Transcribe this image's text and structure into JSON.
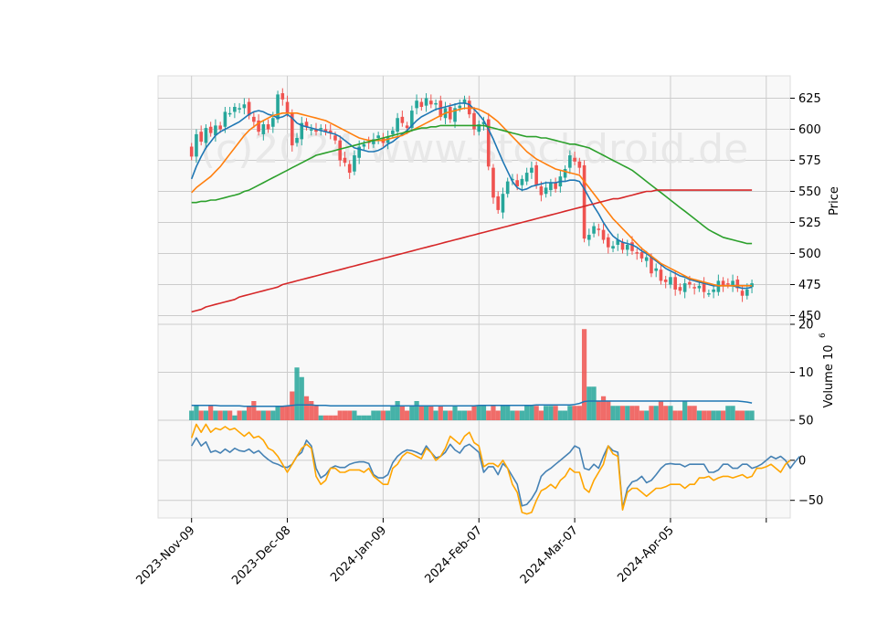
{
  "chart_data": [
    {
      "type": "candlestick",
      "panel": "price",
      "ylabel": "Price",
      "ylim": [
        443,
        643
      ],
      "yticks": [
        450,
        475,
        500,
        525,
        550,
        575,
        600,
        625
      ],
      "watermark": "(c)2024 www.stockdroid.de",
      "x_tick_labels": [
        "2023-Nov-09",
        "2023-Dec-08",
        "2024-Jan-09",
        "2024-Feb-07",
        "2024-Mar-07",
        "2024-Apr-05"
      ],
      "x_tick_index": [
        0,
        20,
        40,
        60,
        80,
        100
      ],
      "x_range": [
        -7,
        125
      ],
      "grid": true,
      "up_color": "#26a69a",
      "down_color": "#ef5350",
      "candles_close_approx": [
        578,
        596,
        590,
        601,
        597,
        603,
        600,
        614,
        613,
        618,
        617,
        620,
        611,
        606,
        598,
        604,
        600,
        609,
        628,
        624,
        613,
        587,
        593,
        605,
        602,
        600,
        598,
        601,
        598,
        597,
        591,
        575,
        573,
        565,
        579,
        586,
        588,
        589,
        592,
        595,
        589,
        594,
        599,
        609,
        605,
        601,
        615,
        623,
        618,
        625,
        620,
        621,
        610,
        617,
        608,
        617,
        619,
        624,
        612,
        600,
        604,
        606,
        570,
        545,
        535,
        548,
        558,
        560,
        554,
        560,
        565,
        569,
        555,
        547,
        553,
        557,
        552,
        562,
        568,
        579,
        574,
        569,
        512,
        515,
        522,
        519,
        511,
        505,
        506,
        511,
        503,
        507,
        502,
        500,
        496,
        497,
        484,
        488,
        478,
        477,
        481,
        471,
        470,
        476,
        475,
        472,
        474,
        469,
        468,
        471,
        478,
        474,
        475,
        478,
        472,
        466,
        471,
        476
      ],
      "ma_series": [
        {
          "color": "#1f77b4",
          "values": [
            560,
            570,
            578,
            585,
            590,
            595,
            598,
            600,
            602,
            604,
            606,
            609,
            612,
            614,
            615,
            614,
            612,
            611,
            609,
            610,
            612,
            609,
            605,
            603,
            602,
            601,
            600,
            599,
            598,
            597,
            596,
            594,
            591,
            588,
            585,
            584,
            583,
            582,
            582,
            583,
            585,
            588,
            590,
            593,
            596,
            599,
            603,
            607,
            610,
            612,
            614,
            616,
            617,
            618,
            619,
            620,
            621,
            621,
            620,
            616,
            612,
            607,
            600,
            592,
            583,
            574,
            566,
            558,
            553,
            551,
            552,
            554,
            555,
            556,
            557,
            557,
            557,
            558,
            558,
            559,
            559,
            558,
            552,
            545,
            538,
            532,
            525,
            519,
            514,
            511,
            509,
            508,
            507,
            505,
            502,
            500,
            497,
            494,
            491,
            488,
            486,
            484,
            482,
            481,
            479,
            478,
            477,
            476,
            475,
            474,
            474,
            474,
            474,
            474,
            473,
            472,
            472,
            473
          ]
        },
        {
          "color": "#ff7f0e",
          "values": [
            549,
            553,
            556,
            559,
            562,
            566,
            570,
            575,
            580,
            585,
            590,
            595,
            599,
            602,
            605,
            607,
            609,
            611,
            612,
            613,
            613,
            613,
            613,
            612,
            611,
            610,
            609,
            608,
            607,
            605,
            603,
            601,
            599,
            597,
            595,
            593,
            592,
            591,
            591,
            591,
            591,
            592,
            593,
            594,
            595,
            597,
            599,
            601,
            603,
            605,
            607,
            609,
            611,
            613,
            614,
            615,
            616,
            617,
            617,
            617,
            616,
            614,
            612,
            609,
            606,
            602,
            598,
            594,
            590,
            586,
            582,
            579,
            576,
            574,
            572,
            570,
            568,
            567,
            566,
            565,
            564,
            563,
            558,
            553,
            548,
            543,
            538,
            533,
            528,
            524,
            520,
            516,
            512,
            508,
            504,
            501,
            498,
            495,
            492,
            490,
            488,
            486,
            484,
            482,
            480,
            479,
            478,
            477,
            476,
            475,
            474,
            474,
            474,
            474,
            474,
            474,
            474,
            474
          ]
        },
        {
          "color": "#2ca02c",
          "values": [
            541,
            541,
            542,
            542,
            543,
            543,
            544,
            545,
            546,
            547,
            548,
            550,
            551,
            553,
            555,
            557,
            559,
            561,
            563,
            565,
            567,
            569,
            571,
            573,
            575,
            577,
            579,
            580,
            581,
            582,
            583,
            584,
            585,
            586,
            587,
            588,
            589,
            590,
            591,
            592,
            593,
            594,
            595,
            596,
            597,
            598,
            599,
            600,
            601,
            601,
            602,
            602,
            603,
            603,
            603,
            603,
            603,
            603,
            603,
            603,
            603,
            603,
            602,
            601,
            600,
            599,
            598,
            597,
            596,
            595,
            594,
            594,
            594,
            593,
            593,
            592,
            591,
            590,
            589,
            588,
            588,
            587,
            586,
            585,
            583,
            581,
            579,
            577,
            575,
            573,
            571,
            569,
            567,
            564,
            561,
            558,
            555,
            552,
            549,
            546,
            543,
            540,
            537,
            534,
            531,
            528,
            525,
            522,
            519,
            517,
            515,
            513,
            512,
            511,
            510,
            509,
            508,
            508
          ]
        },
        {
          "color": "#d62728",
          "values": [
            453,
            454,
            455,
            457,
            458,
            459,
            460,
            461,
            462,
            463,
            465,
            466,
            467,
            468,
            469,
            470,
            471,
            472,
            473,
            475,
            476,
            477,
            478,
            479,
            480,
            481,
            482,
            483,
            484,
            485,
            486,
            487,
            488,
            489,
            490,
            491,
            492,
            493,
            494,
            495,
            496,
            497,
            498,
            499,
            500,
            501,
            502,
            503,
            504,
            505,
            506,
            507,
            508,
            509,
            510,
            511,
            512,
            513,
            514,
            515,
            516,
            517,
            518,
            519,
            520,
            521,
            522,
            523,
            524,
            525,
            526,
            527,
            528,
            529,
            530,
            531,
            532,
            533,
            534,
            535,
            536,
            537,
            538,
            539,
            540,
            541,
            542,
            543,
            544,
            544,
            545,
            546,
            547,
            548,
            549,
            550,
            550,
            551,
            551,
            551,
            551,
            551,
            551,
            551,
            551,
            551,
            551,
            551,
            551,
            551,
            551,
            551,
            551,
            551,
            551,
            551,
            551,
            551
          ]
        }
      ]
    },
    {
      "type": "bar",
      "panel": "volume",
      "ylabel": "Volume  10^6",
      "ylim": [
        0,
        20
      ],
      "yticks": [
        10,
        20
      ],
      "grid": true,
      "values_approx": [
        2,
        3,
        2,
        2,
        3,
        2,
        2,
        2,
        2,
        1,
        2,
        2,
        3,
        4,
        2,
        2,
        2,
        2,
        3,
        3,
        3,
        6,
        11,
        9,
        5,
        4,
        3,
        1,
        1,
        1,
        1,
        2,
        2,
        2,
        2,
        1,
        1,
        1,
        2,
        2,
        2,
        2,
        3,
        4,
        3,
        2,
        3,
        4,
        3,
        3,
        3,
        2,
        3,
        2,
        2,
        3,
        2,
        2,
        2,
        3,
        3,
        3,
        2,
        3,
        2,
        3,
        3,
        2,
        2,
        2,
        3,
        3,
        3,
        2,
        3,
        3,
        3,
        2,
        2,
        3,
        3,
        3,
        19,
        7,
        7,
        4,
        5,
        4,
        3,
        3,
        3,
        3,
        3,
        3,
        2,
        2,
        3,
        3,
        4,
        3,
        3,
        2,
        2,
        4,
        3,
        3,
        2,
        2,
        2,
        2,
        2,
        2,
        3,
        3,
        2,
        2,
        2,
        2
      ],
      "ma_values_approx": [
        3.1,
        3.1,
        3.1,
        3.1,
        3.1,
        3.1,
        3.0,
        3.0,
        3.0,
        3.0,
        3.0,
        2.9,
        2.9,
        2.9,
        2.9,
        2.9,
        2.9,
        2.9,
        2.9,
        2.9,
        3.0,
        3.1,
        3.2,
        3.2,
        3.2,
        3.2,
        3.1,
        3.1,
        3.1,
        3.0,
        3.0,
        3.0,
        3.0,
        3.0,
        3.0,
        3.0,
        3.0,
        3.0,
        3.0,
        3.0,
        3.0,
        3.0,
        3.0,
        3.0,
        3.0,
        3.0,
        3.0,
        3.0,
        3.0,
        3.0,
        3.0,
        3.0,
        3.0,
        3.0,
        3.0,
        3.0,
        3.0,
        3.0,
        3.0,
        3.0,
        3.1,
        3.1,
        3.1,
        3.1,
        3.1,
        3.1,
        3.1,
        3.1,
        3.1,
        3.1,
        3.1,
        3.1,
        3.2,
        3.2,
        3.2,
        3.2,
        3.2,
        3.2,
        3.2,
        3.2,
        3.3,
        3.5,
        3.9,
        4.0,
        4.0,
        4.0,
        4.0,
        4.0,
        4.0,
        4.0,
        4.0,
        4.0,
        4.0,
        4.0,
        4.0,
        4.0,
        4.0,
        4.0,
        4.0,
        4.0,
        4.0,
        4.0,
        4.0,
        4.0,
        4.0,
        4.0,
        4.0,
        4.0,
        4.0,
        4.0,
        4.0,
        4.0,
        4.0,
        4.0,
        4.0,
        3.9,
        3.8,
        3.6
      ],
      "up_color": "#26a69a",
      "down_color": "#ef5350",
      "ma_color": "#1f77b4"
    },
    {
      "type": "line",
      "panel": "oscillator",
      "ylim": [
        -72,
        50
      ],
      "yticks": [
        -50,
        0,
        50
      ],
      "grid": true,
      "series": [
        {
          "color": "#4682b4",
          "values": [
            18,
            28,
            18,
            23,
            10,
            12,
            9,
            14,
            10,
            15,
            12,
            11,
            14,
            9,
            12,
            6,
            1,
            -3,
            -5,
            -8,
            -9,
            -5,
            5,
            10,
            25,
            18,
            -10,
            -22,
            -18,
            -10,
            -7,
            -9,
            -9,
            -5,
            -3,
            -2,
            -2,
            -4,
            -18,
            -22,
            -22,
            -18,
            -3,
            5,
            10,
            13,
            12,
            10,
            7,
            18,
            10,
            3,
            5,
            10,
            20,
            13,
            9,
            17,
            20,
            15,
            10,
            -15,
            -8,
            -8,
            -18,
            -4,
            -10,
            -20,
            -30,
            -57,
            -55,
            -48,
            -38,
            -20,
            -14,
            -10,
            -5,
            0,
            5,
            10,
            18,
            15,
            -10,
            -12,
            -5,
            -10,
            5,
            18,
            12,
            10,
            -60,
            -35,
            -27,
            -25,
            -20,
            -28,
            -25,
            -18,
            -10,
            -5,
            -4,
            -5,
            -5,
            -8,
            -5,
            -5,
            -5,
            -5,
            -15,
            -15,
            -12,
            -5,
            -5,
            -10,
            -10,
            -5,
            -5,
            -10,
            -8,
            -5,
            0,
            5,
            2,
            5,
            0,
            -10,
            -2,
            5
          ]
        },
        {
          "color": "#ffa500",
          "values": [
            28,
            45,
            35,
            45,
            35,
            40,
            38,
            42,
            38,
            40,
            35,
            30,
            35,
            28,
            30,
            25,
            15,
            12,
            5,
            -5,
            -15,
            -5,
            5,
            15,
            20,
            15,
            -20,
            -30,
            -25,
            -10,
            -10,
            -15,
            -15,
            -12,
            -12,
            -12,
            -15,
            -10,
            -20,
            -25,
            -30,
            -30,
            -10,
            -5,
            5,
            10,
            8,
            5,
            2,
            15,
            10,
            0,
            5,
            15,
            30,
            25,
            20,
            30,
            35,
            22,
            18,
            -8,
            -4,
            -4,
            -8,
            0,
            -10,
            -30,
            -40,
            -65,
            -67,
            -65,
            -50,
            -38,
            -35,
            -30,
            -35,
            -25,
            -20,
            -10,
            -15,
            -15,
            -35,
            -40,
            -25,
            -15,
            -5,
            18,
            8,
            5,
            -62,
            -40,
            -35,
            -35,
            -40,
            -45,
            -40,
            -35,
            -35,
            -33,
            -30,
            -30,
            -30,
            -35,
            -30,
            -30,
            -22,
            -22,
            -20,
            -25,
            -22,
            -20,
            -20,
            -22,
            -20,
            -18,
            -22,
            -20,
            -10,
            -10,
            -8,
            -5,
            -10,
            -15,
            -5,
            0
          ]
        }
      ]
    }
  ]
}
